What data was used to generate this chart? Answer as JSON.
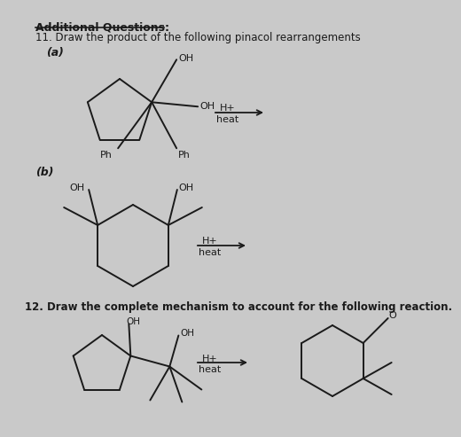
{
  "background_color": "#c9c9c9",
  "title_text": "Additional Questions:",
  "line1": "11. Draw the product of the following pinacol rearrangements",
  "label_a": "(a)",
  "label_b": "(b)",
  "label_12": "12. Draw the complete mechanism to account for the following reaction.",
  "line_color": "#1a1a1a",
  "text_color": "#1a1a1a",
  "lw": 1.4
}
